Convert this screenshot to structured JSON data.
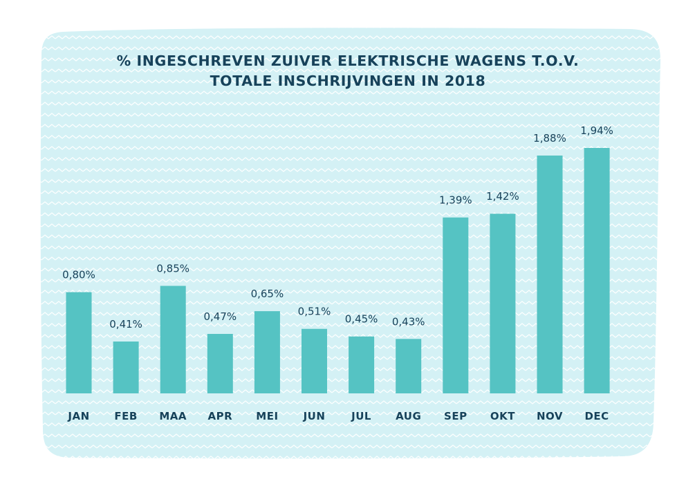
{
  "chart_data": {
    "type": "bar",
    "title_lines": [
      "% INGESCHREVEN ZUIVER ELEKTRISCHE WAGENS T.O.V.",
      "TOTALE INSCHRIJVINGEN IN 2018"
    ],
    "categories": [
      "JAN",
      "FEB",
      "MAA",
      "APR",
      "MEI",
      "JUN",
      "JUL",
      "AUG",
      "SEP",
      "OKT",
      "NOV",
      "DEC"
    ],
    "values": [
      0.8,
      0.41,
      0.85,
      0.47,
      0.65,
      0.51,
      0.45,
      0.43,
      1.39,
      1.42,
      1.88,
      1.94
    ],
    "value_labels": [
      "0,80%",
      "0,41%",
      "0,85%",
      "0,47%",
      "0,65%",
      "0,51%",
      "0,45%",
      "0,43%",
      "1,39%",
      "1,42%",
      "1,88%",
      "1,94%"
    ],
    "ylim": [
      0,
      1.94
    ],
    "grid": false,
    "legend": "none",
    "colors": {
      "bar": "#55c3c3",
      "text": "#17425a",
      "background_panel": "#d4f1f5",
      "pattern": "#ffffff"
    }
  }
}
